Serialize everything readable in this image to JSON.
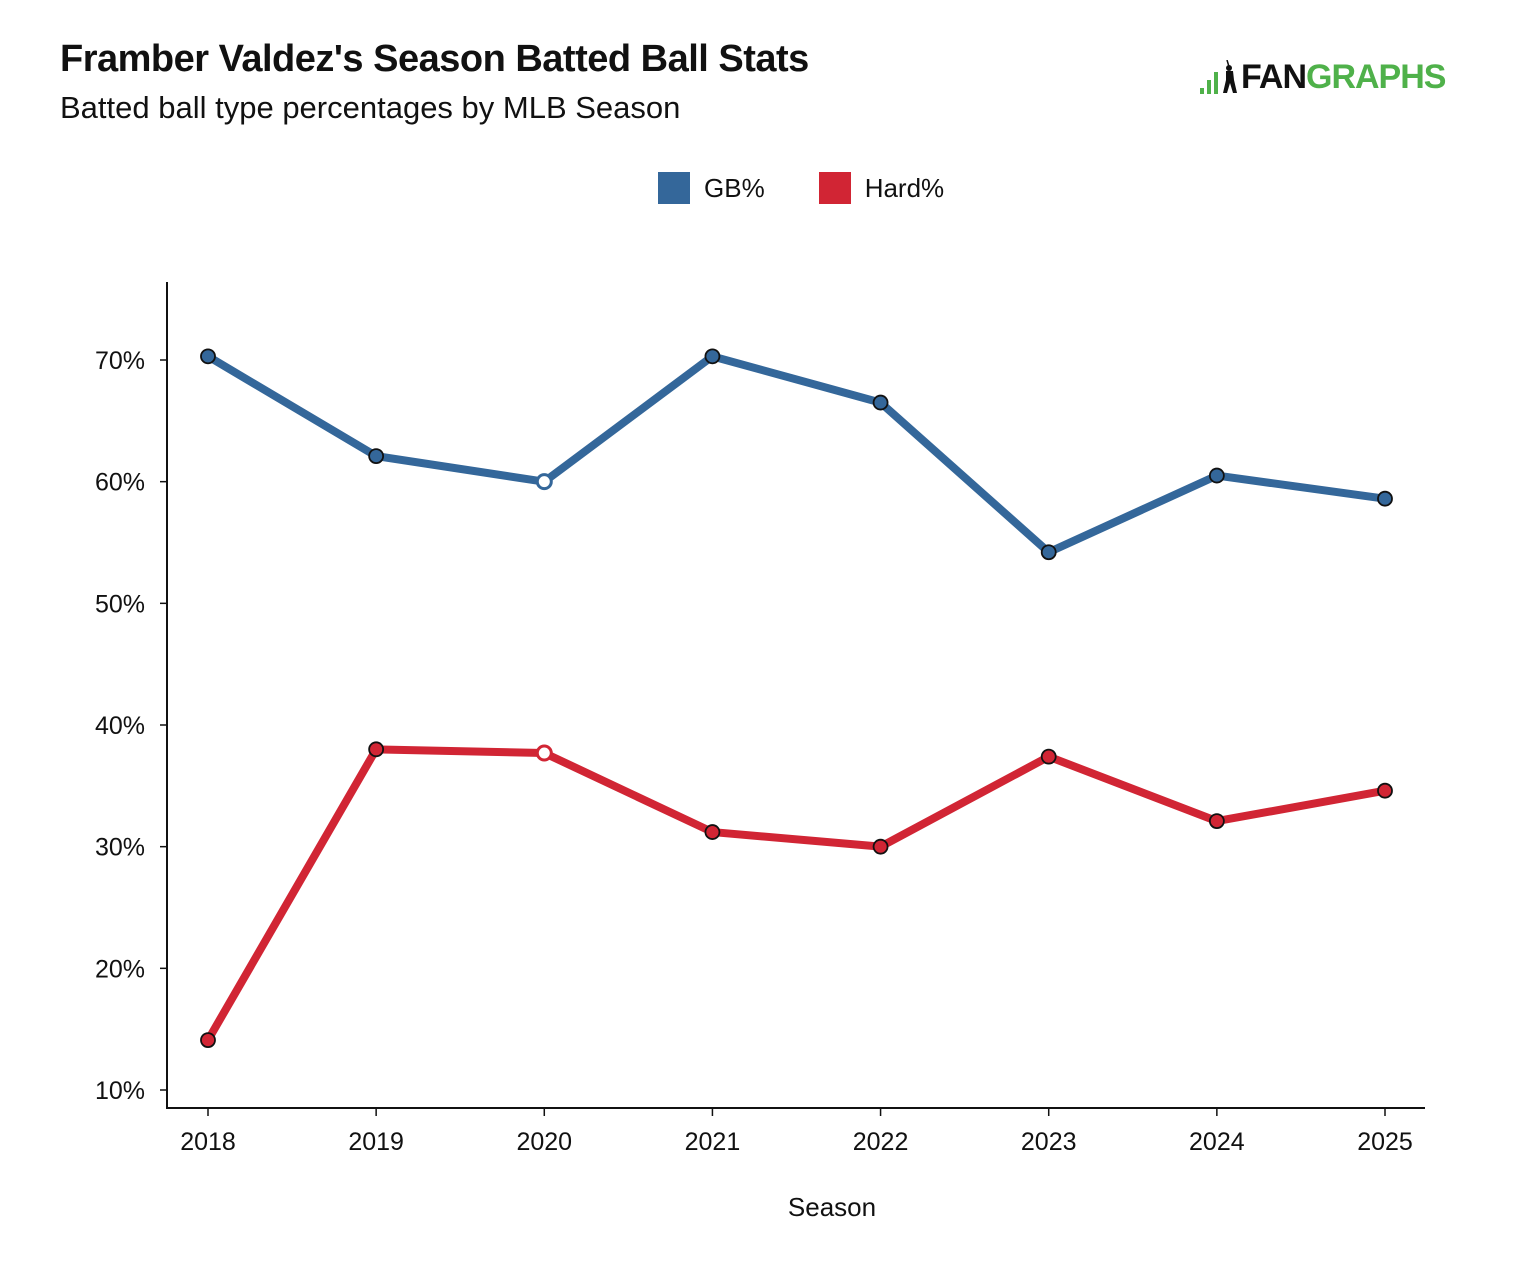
{
  "header": {
    "title": "Framber Valdez's Season Batted Ball Stats",
    "subtitle": "Batted ball type percentages by MLB Season"
  },
  "logo": {
    "text_dark": "FAN",
    "text_green": "GRAPHS",
    "icon": "batter-bars-icon",
    "colors": {
      "dark": "#111111",
      "green": "#4fb14a"
    }
  },
  "chart_data": {
    "type": "line",
    "title": "Framber Valdez's Season Batted Ball Stats",
    "subtitle": "Batted ball type percentages by MLB Season",
    "xlabel": "Season",
    "ylabel": "",
    "x": [
      2018,
      2019,
      2020,
      2021,
      2022,
      2023,
      2024,
      2025
    ],
    "x_tick_labels": [
      "2018",
      "2019",
      "2020",
      "2021",
      "2022",
      "2023",
      "2024",
      "2025"
    ],
    "y_ticks": [
      10,
      20,
      30,
      40,
      50,
      60,
      70
    ],
    "y_tick_labels": [
      "10%",
      "20%",
      "30%",
      "40%",
      "50%",
      "60%",
      "70%"
    ],
    "ylim": [
      8.5,
      76.5
    ],
    "grid": false,
    "legend_position": "top-center",
    "hollow_marker_x": [
      2020
    ],
    "series": [
      {
        "name": "GB%",
        "color": "#34679a",
        "values": [
          70.3,
          62.1,
          60.0,
          70.3,
          66.5,
          54.2,
          60.5,
          58.6
        ]
      },
      {
        "name": "Hard%",
        "color": "#d12534",
        "values": [
          14.1,
          38.0,
          37.7,
          31.2,
          30.0,
          37.4,
          32.1,
          34.6
        ]
      }
    ]
  }
}
